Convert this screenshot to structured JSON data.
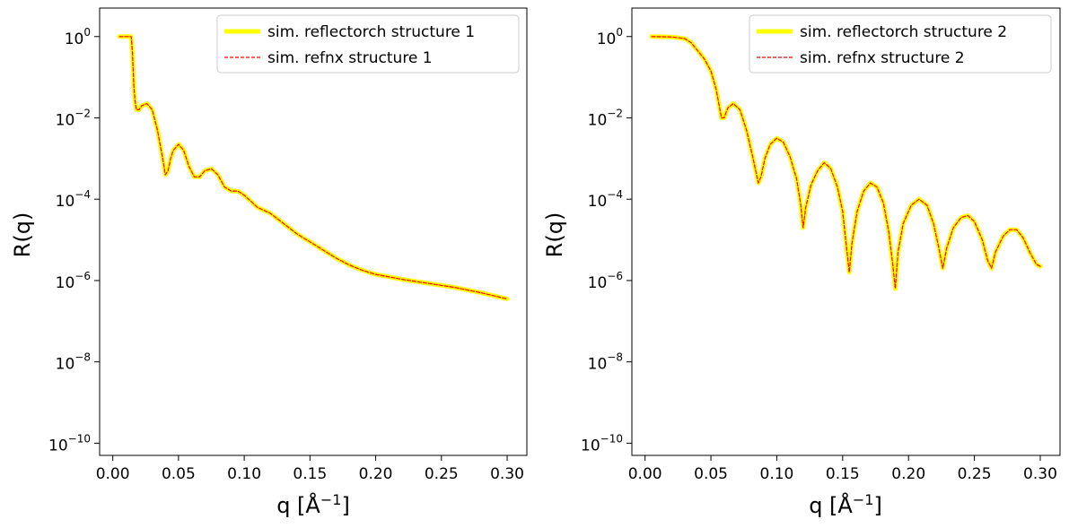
{
  "chart_data": [
    {
      "type": "line",
      "xlabel": "q [Å^-1]",
      "ylabel": "R(q)",
      "xlim": [
        -0.01,
        0.315
      ],
      "ylim_log10": [
        -10.3,
        0.7
      ],
      "xticks": [
        "0.00",
        "0.05",
        "0.10",
        "0.15",
        "0.20",
        "0.25",
        "0.30"
      ],
      "yticks": [
        0,
        -2,
        -4,
        -6,
        -8,
        -10
      ],
      "yscale": "log",
      "legend_position": "top-right",
      "series": [
        {
          "name": "sim. reflectorch structure 1",
          "color": "#ffff00",
          "style": "solid-thick",
          "points": [
            [
              0.005,
              0
            ],
            [
              0.01,
              0
            ],
            [
              0.014,
              0
            ],
            [
              0.015,
              -0.4
            ],
            [
              0.016,
              -1.2
            ],
            [
              0.017,
              -1.6
            ],
            [
              0.018,
              -1.8
            ],
            [
              0.02,
              -1.8
            ],
            [
              0.022,
              -1.7
            ],
            [
              0.026,
              -1.65
            ],
            [
              0.03,
              -1.8
            ],
            [
              0.034,
              -2.3
            ],
            [
              0.038,
              -3.0
            ],
            [
              0.04,
              -3.4
            ],
            [
              0.042,
              -3.3
            ],
            [
              0.044,
              -3.0
            ],
            [
              0.046,
              -2.8
            ],
            [
              0.05,
              -2.65
            ],
            [
              0.054,
              -2.8
            ],
            [
              0.058,
              -3.2
            ],
            [
              0.062,
              -3.45
            ],
            [
              0.066,
              -3.45
            ],
            [
              0.07,
              -3.3
            ],
            [
              0.075,
              -3.25
            ],
            [
              0.08,
              -3.4
            ],
            [
              0.085,
              -3.7
            ],
            [
              0.09,
              -3.8
            ],
            [
              0.095,
              -3.8
            ],
            [
              0.1,
              -3.9
            ],
            [
              0.11,
              -4.2
            ],
            [
              0.12,
              -4.35
            ],
            [
              0.13,
              -4.6
            ],
            [
              0.14,
              -4.85
            ],
            [
              0.15,
              -5.05
            ],
            [
              0.16,
              -5.25
            ],
            [
              0.17,
              -5.45
            ],
            [
              0.18,
              -5.62
            ],
            [
              0.19,
              -5.75
            ],
            [
              0.2,
              -5.85
            ],
            [
              0.22,
              -5.97
            ],
            [
              0.24,
              -6.07
            ],
            [
              0.26,
              -6.17
            ],
            [
              0.28,
              -6.3
            ],
            [
              0.3,
              -6.45
            ]
          ]
        },
        {
          "name": "sim. refnx structure 1",
          "color": "#ff0000",
          "style": "dashed-thin",
          "same_as": 0
        }
      ]
    },
    {
      "type": "line",
      "xlabel": "q [Å^-1]",
      "ylabel": "R(q)",
      "xlim": [
        -0.01,
        0.315
      ],
      "ylim_log10": [
        -10.3,
        0.7
      ],
      "xticks": [
        "0.00",
        "0.05",
        "0.10",
        "0.15",
        "0.20",
        "0.25",
        "0.30"
      ],
      "yticks": [
        0,
        -2,
        -4,
        -6,
        -8,
        -10
      ],
      "yscale": "log",
      "legend_position": "top-right",
      "series": [
        {
          "name": "sim. reflectorch structure 2",
          "color": "#ffff00",
          "style": "solid-thick",
          "points": [
            [
              0.005,
              0
            ],
            [
              0.02,
              -0.01
            ],
            [
              0.03,
              -0.05
            ],
            [
              0.035,
              -0.15
            ],
            [
              0.04,
              -0.35
            ],
            [
              0.045,
              -0.55
            ],
            [
              0.05,
              -0.85
            ],
            [
              0.054,
              -1.3
            ],
            [
              0.058,
              -2.0
            ],
            [
              0.06,
              -2.0
            ],
            [
              0.063,
              -1.75
            ],
            [
              0.067,
              -1.65
            ],
            [
              0.072,
              -1.8
            ],
            [
              0.077,
              -2.3
            ],
            [
              0.082,
              -3.0
            ],
            [
              0.086,
              -3.6
            ],
            [
              0.088,
              -3.45
            ],
            [
              0.091,
              -3.0
            ],
            [
              0.095,
              -2.65
            ],
            [
              0.1,
              -2.5
            ],
            [
              0.105,
              -2.6
            ],
            [
              0.11,
              -2.95
            ],
            [
              0.115,
              -3.5
            ],
            [
              0.118,
              -4.1
            ],
            [
              0.12,
              -4.7
            ],
            [
              0.122,
              -4.2
            ],
            [
              0.126,
              -3.65
            ],
            [
              0.131,
              -3.3
            ],
            [
              0.136,
              -3.1
            ],
            [
              0.141,
              -3.25
            ],
            [
              0.146,
              -3.7
            ],
            [
              0.15,
              -4.3
            ],
            [
              0.153,
              -5.2
            ],
            [
              0.155,
              -5.8
            ],
            [
              0.157,
              -5.1
            ],
            [
              0.161,
              -4.3
            ],
            [
              0.166,
              -3.8
            ],
            [
              0.171,
              -3.6
            ],
            [
              0.176,
              -3.7
            ],
            [
              0.181,
              -4.1
            ],
            [
              0.185,
              -4.8
            ],
            [
              0.188,
              -5.6
            ],
            [
              0.19,
              -6.2
            ],
            [
              0.192,
              -5.3
            ],
            [
              0.196,
              -4.6
            ],
            [
              0.202,
              -4.15
            ],
            [
              0.208,
              -4.0
            ],
            [
              0.214,
              -4.15
            ],
            [
              0.219,
              -4.6
            ],
            [
              0.223,
              -5.2
            ],
            [
              0.226,
              -5.7
            ],
            [
              0.229,
              -5.2
            ],
            [
              0.234,
              -4.7
            ],
            [
              0.24,
              -4.45
            ],
            [
              0.245,
              -4.4
            ],
            [
              0.25,
              -4.55
            ],
            [
              0.256,
              -5.0
            ],
            [
              0.26,
              -5.5
            ],
            [
              0.263,
              -5.7
            ],
            [
              0.266,
              -5.3
            ],
            [
              0.272,
              -4.9
            ],
            [
              0.277,
              -4.75
            ],
            [
              0.282,
              -4.75
            ],
            [
              0.287,
              -4.95
            ],
            [
              0.292,
              -5.3
            ],
            [
              0.297,
              -5.6
            ],
            [
              0.3,
              -5.65
            ]
          ]
        },
        {
          "name": "sim. refnx structure 2",
          "color": "#ff0000",
          "style": "dashed-thin",
          "same_as": 0
        }
      ]
    }
  ]
}
